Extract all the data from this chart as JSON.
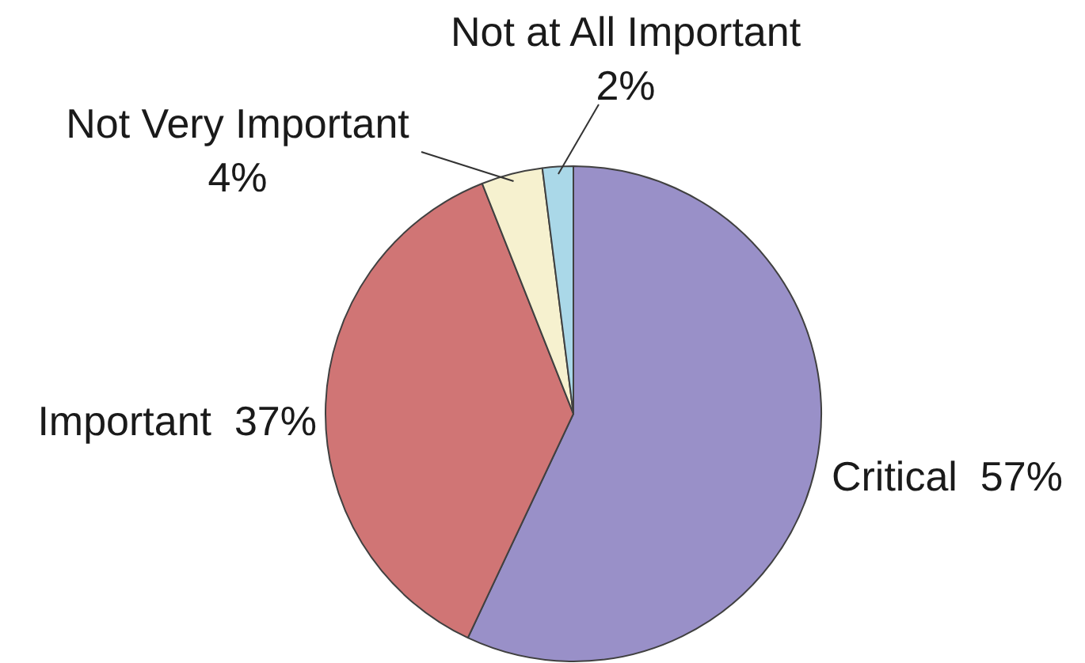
{
  "chart_data": {
    "type": "pie",
    "categories": [
      "Critical",
      "Important",
      "Not Very Important",
      "Not at All Important"
    ],
    "values": [
      57,
      37,
      4,
      2
    ],
    "value_labels": [
      "57%",
      "37%",
      "4%",
      "2%"
    ],
    "colors": [
      "#9990c8",
      "#d07575",
      "#f6f1cf",
      "#aad8e8"
    ],
    "legend": false
  }
}
